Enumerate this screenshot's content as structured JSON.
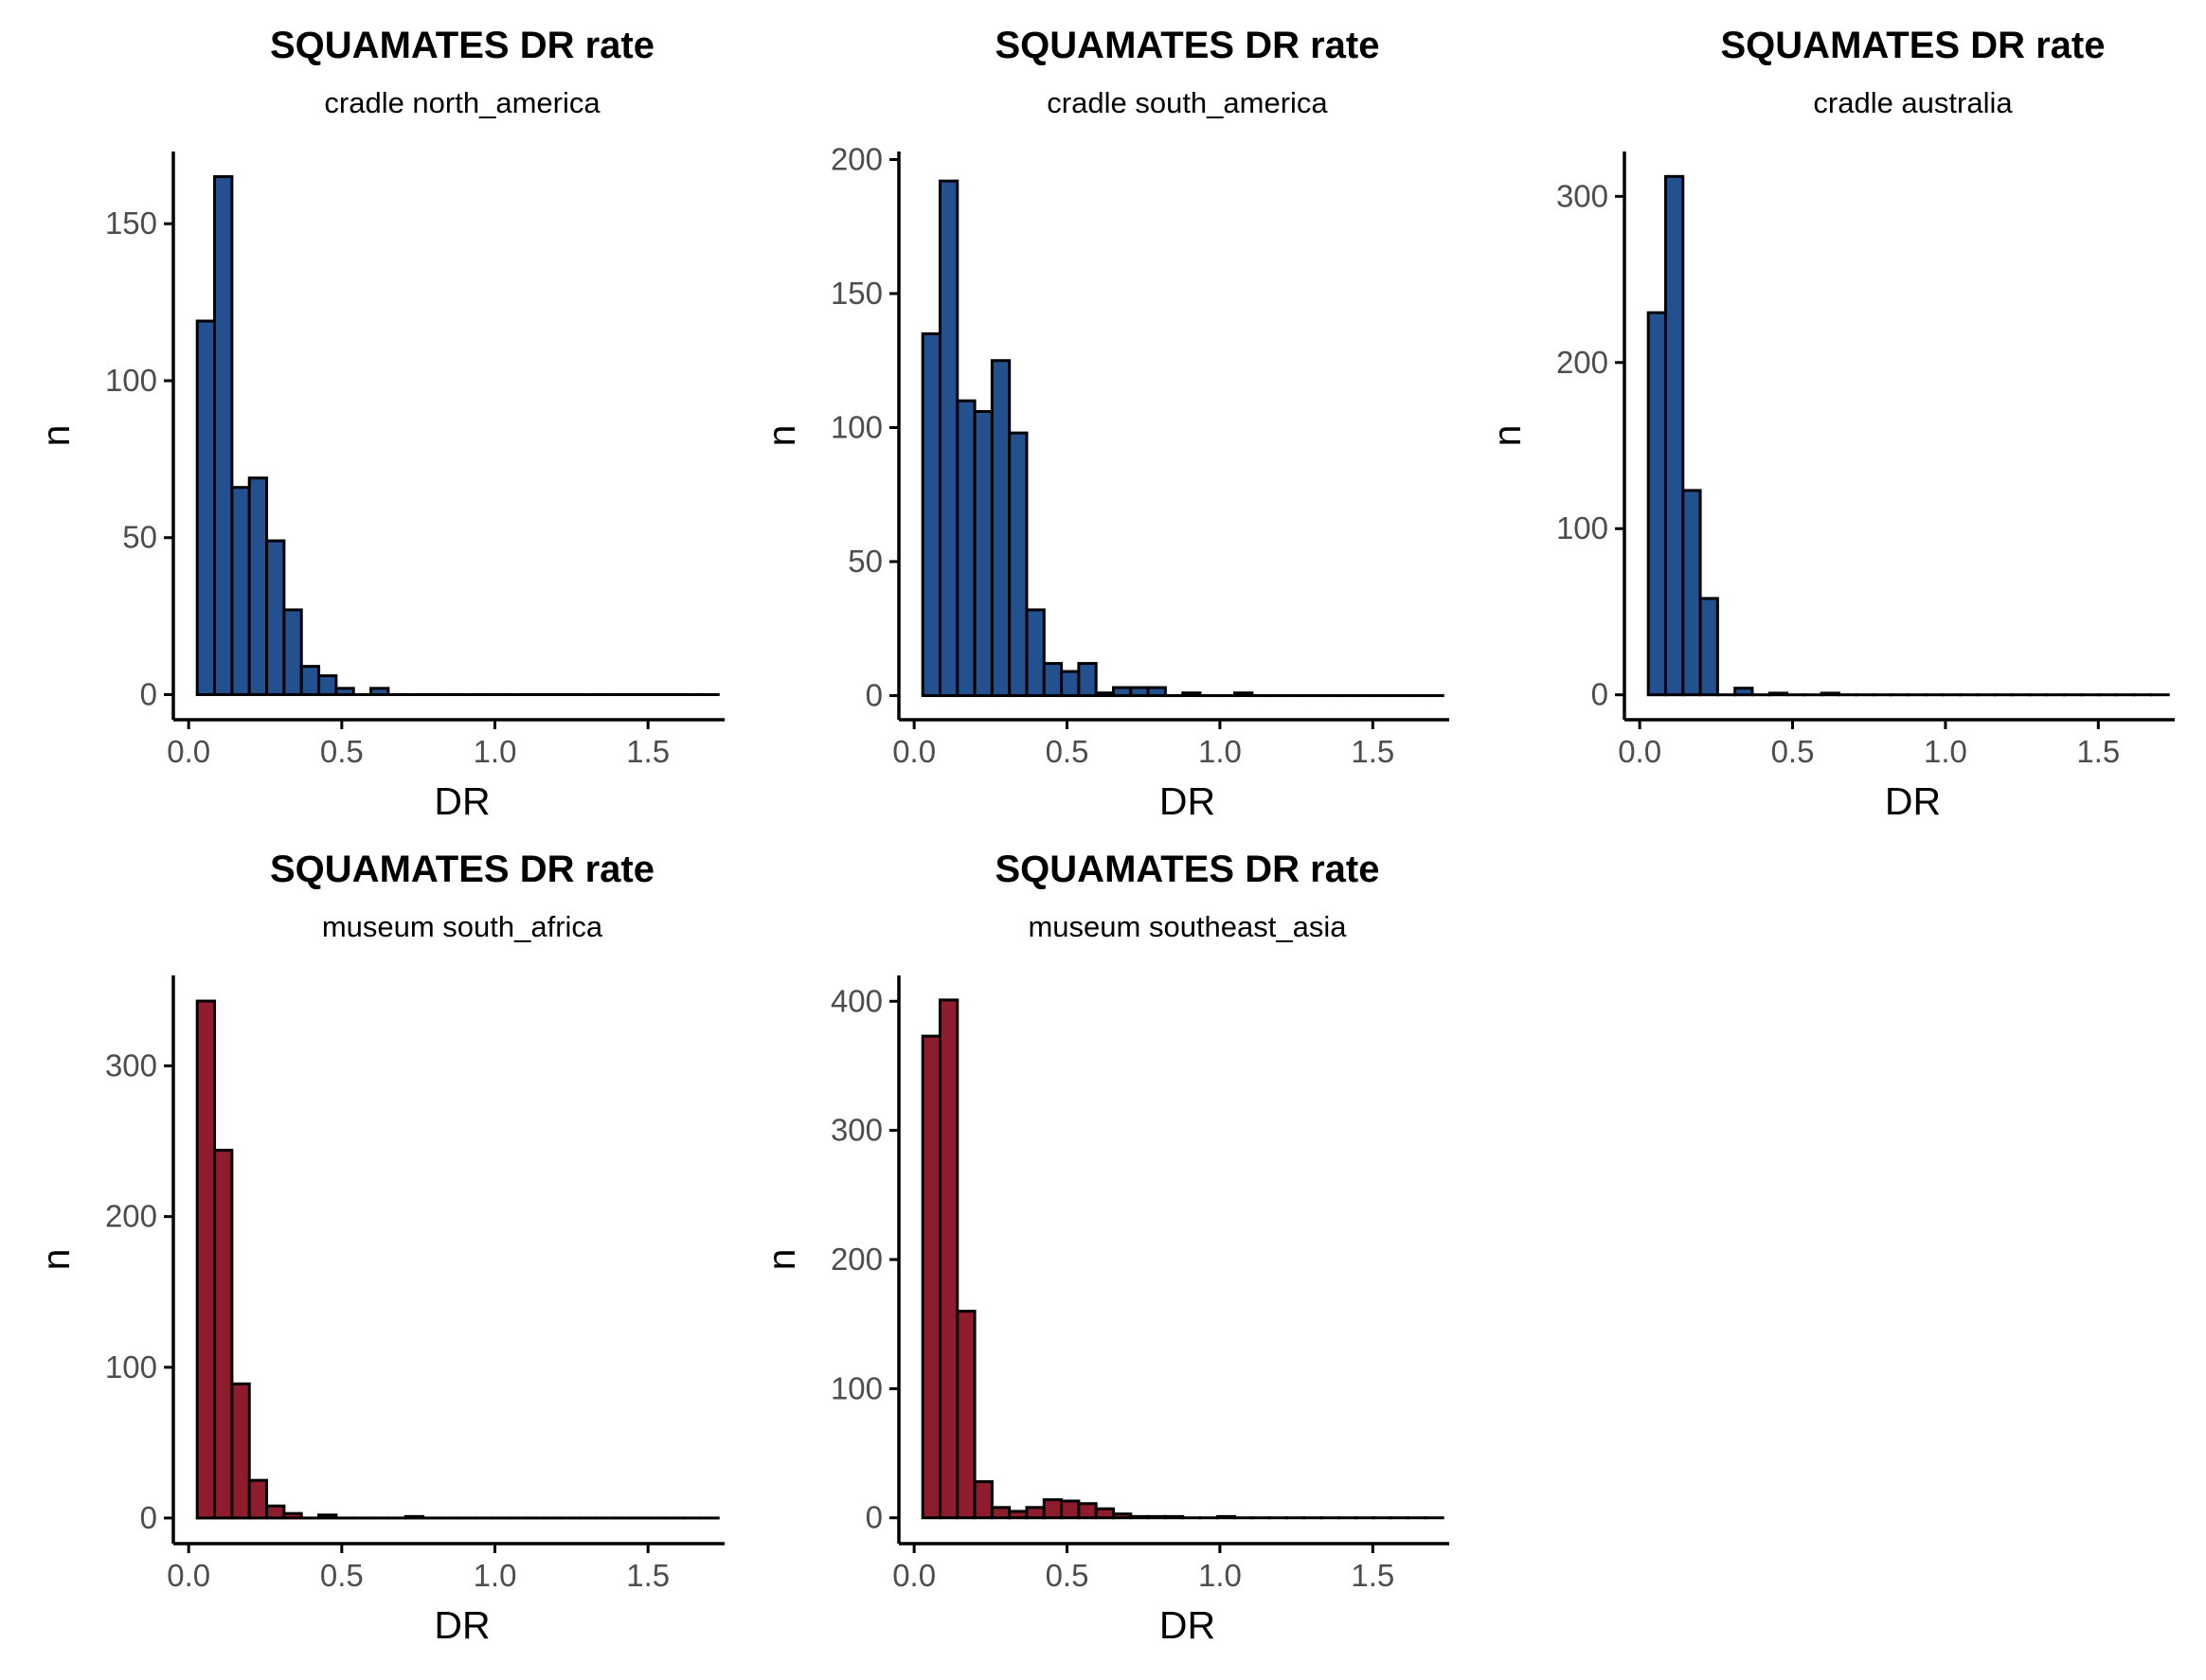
{
  "colors": {
    "cradle": "#23508F",
    "museum": "#8E1C2C",
    "outline": "#000000",
    "background": "#FFFFFF"
  },
  "chart_data": [
    {
      "type": "bar",
      "title": "SQUAMATES DR rate",
      "subtitle": "cradle north_america",
      "xlabel": "DR",
      "ylabel": "n",
      "fill": "cradle",
      "xlim": [
        -0.05,
        1.75
      ],
      "ylim": [
        -8,
        173
      ],
      "xticks": [
        "0.0",
        "0.5",
        "1.0",
        "1.5"
      ],
      "xtick_values": [
        0,
        0.5,
        1.0,
        1.5
      ],
      "yticks": [
        "0",
        "50",
        "100",
        "150"
      ],
      "ytick_values": [
        0,
        50,
        100,
        150
      ],
      "bin_start": 0.028,
      "bin_width": 0.0567,
      "values": [
        119,
        165,
        66,
        69,
        49,
        27,
        9,
        6,
        2,
        0,
        2,
        0,
        0,
        0,
        0,
        0,
        0,
        0,
        0,
        0,
        0,
        0,
        0,
        0,
        0,
        0,
        0,
        0,
        0,
        0
      ]
    },
    {
      "type": "bar",
      "title": "SQUAMATES DR rate",
      "subtitle": "cradle south_america",
      "xlabel": "DR",
      "ylabel": "n",
      "fill": "cradle",
      "xlim": [
        -0.05,
        1.75
      ],
      "ylim": [
        -9,
        203
      ],
      "xticks": [
        "0.0",
        "0.5",
        "1.0",
        "1.5"
      ],
      "xtick_values": [
        0,
        0.5,
        1.0,
        1.5
      ],
      "yticks": [
        "0",
        "50",
        "100",
        "150",
        "200"
      ],
      "ytick_values": [
        0,
        50,
        100,
        150,
        200
      ],
      "bin_start": 0.028,
      "bin_width": 0.0567,
      "values": [
        135,
        192,
        110,
        106,
        125,
        98,
        32,
        12,
        9,
        12,
        1,
        3,
        3,
        3,
        0,
        1,
        0,
        0,
        1,
        0,
        0,
        0,
        0,
        0,
        0,
        0,
        0,
        0,
        0,
        0
      ]
    },
    {
      "type": "bar",
      "title": "SQUAMATES DR rate",
      "subtitle": "cradle australia",
      "xlabel": "DR",
      "ylabel": "n",
      "fill": "cradle",
      "xlim": [
        -0.05,
        1.75
      ],
      "ylim": [
        -15,
        327
      ],
      "xticks": [
        "0.0",
        "0.5",
        "1.0",
        "1.5"
      ],
      "xtick_values": [
        0,
        0.5,
        1.0,
        1.5
      ],
      "yticks": [
        "0",
        "100",
        "200",
        "300"
      ],
      "ytick_values": [
        0,
        100,
        200,
        300
      ],
      "bin_start": 0.028,
      "bin_width": 0.0567,
      "values": [
        230,
        312,
        123,
        58,
        0,
        4,
        0,
        1,
        0,
        0,
        1,
        0,
        0,
        0,
        0,
        0,
        0,
        0,
        0,
        0,
        0,
        0,
        0,
        0,
        0,
        0,
        0,
        0,
        0,
        0
      ]
    },
    {
      "type": "bar",
      "title": "SQUAMATES DR rate",
      "subtitle": "museum south_africa",
      "xlabel": "DR",
      "ylabel": "n",
      "fill": "museum",
      "xlim": [
        -0.05,
        1.75
      ],
      "ylim": [
        -17,
        360
      ],
      "xticks": [
        "0.0",
        "0.5",
        "1.0",
        "1.5"
      ],
      "xtick_values": [
        0,
        0.5,
        1.0,
        1.5
      ],
      "yticks": [
        "0",
        "100",
        "200",
        "300"
      ],
      "ytick_values": [
        0,
        100,
        200,
        300
      ],
      "bin_start": 0.028,
      "bin_width": 0.0567,
      "values": [
        343,
        244,
        89,
        25,
        8,
        3,
        0,
        2,
        0,
        0,
        0,
        0,
        1,
        0,
        0,
        0,
        0,
        0,
        0,
        0,
        0,
        0,
        0,
        0,
        0,
        0,
        0,
        0,
        0,
        0
      ]
    },
    {
      "type": "bar",
      "title": "SQUAMATES DR rate",
      "subtitle": "museum southeast_asia",
      "xlabel": "DR",
      "ylabel": "n",
      "fill": "museum",
      "xlim": [
        -0.05,
        1.75
      ],
      "ylim": [
        -20,
        420
      ],
      "xticks": [
        "0.0",
        "0.5",
        "1.0",
        "1.5"
      ],
      "xtick_values": [
        0,
        0.5,
        1.0,
        1.5
      ],
      "yticks": [
        "0",
        "100",
        "200",
        "300",
        "400"
      ],
      "ytick_values": [
        0,
        100,
        200,
        300,
        400
      ],
      "bin_start": 0.028,
      "bin_width": 0.0567,
      "values": [
        373,
        401,
        160,
        28,
        8,
        5,
        8,
        14,
        13,
        11,
        7,
        3,
        1,
        1,
        1,
        0,
        0,
        1,
        0,
        0,
        0,
        0,
        0,
        0,
        0,
        0,
        0,
        0,
        0,
        0
      ]
    }
  ]
}
